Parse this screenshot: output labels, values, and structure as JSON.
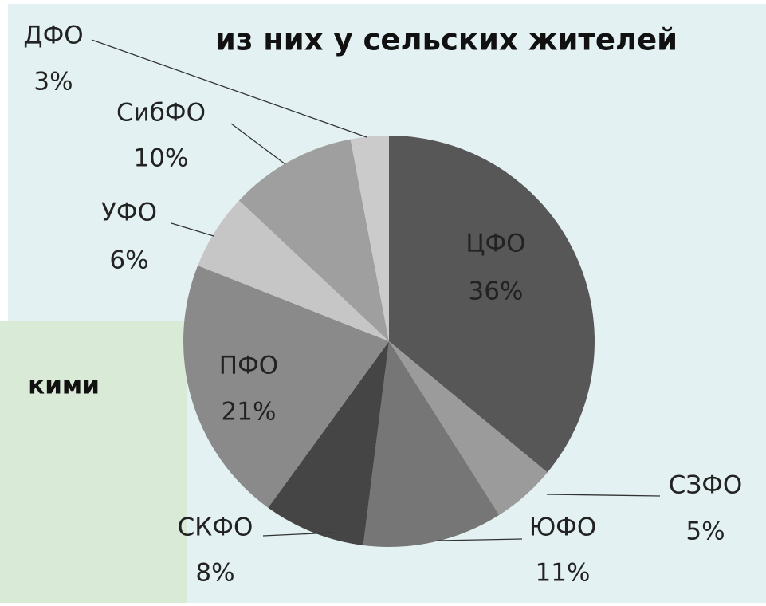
{
  "chart_data": {
    "type": "pie",
    "title": "из них у сельских жителей",
    "categories": [
      "ЦФО",
      "СЗФО",
      "ЮФО",
      "СКФО",
      "ПФО",
      "УФО",
      "СибФО",
      "ДФО"
    ],
    "values": [
      36,
      5,
      11,
      8,
      21,
      6,
      10,
      3
    ],
    "value_labels": [
      "36%",
      "5%",
      "11%",
      "8%",
      "21%",
      "6%",
      "10%",
      "3%"
    ],
    "colors": [
      "#575757",
      "#9b9b9b",
      "#767676",
      "#454545",
      "#8a8a8a",
      "#c6c6c6",
      "#9f9f9f",
      "#cbcbcb"
    ]
  },
  "background_text": "кими"
}
